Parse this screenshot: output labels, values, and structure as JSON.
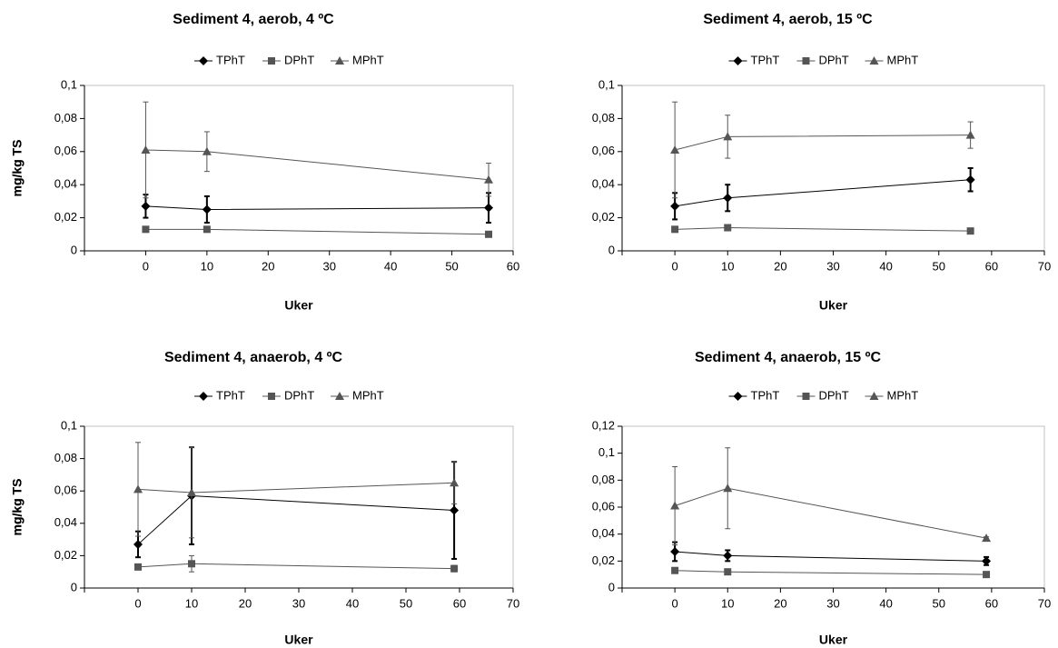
{
  "chart_data": [
    {
      "type": "line",
      "title": "Sediment 4, aerob, 4 ºC",
      "x_label": "Uker",
      "y_label": "mg/kg TS",
      "grid": false,
      "x": [
        0,
        10,
        56
      ],
      "xlim": [
        -10,
        60
      ],
      "xticks": [
        0,
        10,
        20,
        30,
        40,
        50,
        60
      ],
      "ylim": [
        0,
        0.1
      ],
      "yticks": [
        0,
        {
          "value": 0.02,
          "label": "0,02"
        },
        {
          "value": 0.04,
          "label": "0,04"
        },
        {
          "value": 0.06,
          "label": "0,06"
        },
        {
          "value": 0.08,
          "label": "0,08"
        },
        {
          "value": 0.1,
          "label": "0,1"
        }
      ],
      "series": [
        {
          "name": "TPhT",
          "color": "#000000",
          "marker": "diamond",
          "values": [
            0.027,
            0.025,
            0.026
          ],
          "errors": [
            0.007,
            0.008,
            0.009
          ]
        },
        {
          "name": "DPhT",
          "color": "#555555",
          "marker": "square",
          "values": [
            0.013,
            0.013,
            0.01
          ]
        },
        {
          "name": "MPhT",
          "color": "#555555",
          "marker": "triangle",
          "values": [
            0.061,
            0.06,
            0.043
          ],
          "errors": [
            0.029,
            0.012,
            0.01
          ]
        }
      ]
    },
    {
      "type": "line",
      "title": "Sediment 4, aerob, 15 ºC",
      "x_label": "Uker",
      "y_label": "mg/kg TS",
      "grid": false,
      "x": [
        0,
        10,
        56
      ],
      "xlim": [
        -10,
        70
      ],
      "xticks": [
        0,
        10,
        20,
        30,
        40,
        50,
        60,
        70
      ],
      "ylim": [
        0,
        0.1
      ],
      "yticks": [
        0,
        {
          "value": 0.02,
          "label": "0,02"
        },
        {
          "value": 0.04,
          "label": "0,04"
        },
        {
          "value": 0.06,
          "label": "0,06"
        },
        {
          "value": 0.08,
          "label": "0,08"
        },
        {
          "value": 0.1,
          "label": "0,1"
        }
      ],
      "series": [
        {
          "name": "TPhT",
          "color": "#000000",
          "marker": "diamond",
          "values": [
            0.027,
            0.032,
            0.043
          ],
          "errors": [
            0.008,
            0.008,
            0.007
          ]
        },
        {
          "name": "DPhT",
          "color": "#555555",
          "marker": "square",
          "values": [
            0.013,
            0.014,
            0.012
          ]
        },
        {
          "name": "MPhT",
          "color": "#555555",
          "marker": "triangle",
          "values": [
            0.061,
            0.069,
            0.07
          ],
          "errors": [
            0.029,
            0.013,
            0.008
          ]
        }
      ]
    },
    {
      "type": "line",
      "title": "Sediment 4, anaerob, 4 ºC",
      "x_label": "Uker",
      "y_label": "mg/kg TS",
      "grid": false,
      "x": [
        0,
        10,
        59
      ],
      "xlim": [
        -10,
        70
      ],
      "xticks": [
        0,
        10,
        20,
        30,
        40,
        50,
        60,
        70
      ],
      "ylim": [
        0,
        0.1
      ],
      "yticks": [
        0,
        {
          "value": 0.02,
          "label": "0,02"
        },
        {
          "value": 0.04,
          "label": "0,04"
        },
        {
          "value": 0.06,
          "label": "0,06"
        },
        {
          "value": 0.08,
          "label": "0,08"
        },
        {
          "value": 0.1,
          "label": "0,1"
        }
      ],
      "series": [
        {
          "name": "TPhT",
          "color": "#000000",
          "marker": "diamond",
          "values": [
            0.027,
            0.057,
            0.048
          ],
          "errors": [
            0.008,
            0.03,
            0.03
          ]
        },
        {
          "name": "DPhT",
          "color": "#555555",
          "marker": "square",
          "values": [
            0.013,
            0.015,
            0.012
          ],
          "errors": [
            0.001,
            0.005,
            0.002
          ]
        },
        {
          "name": "MPhT",
          "color": "#555555",
          "marker": "triangle",
          "values": [
            0.061,
            0.059,
            0.065
          ],
          "errors": [
            0.029,
            0.028,
            0.013
          ]
        }
      ]
    },
    {
      "type": "line",
      "title": "Sediment 4, anaerob, 15 ºC",
      "x_label": "Uker",
      "y_label": "mg/kg TS",
      "grid": false,
      "x": [
        0,
        10,
        59
      ],
      "xlim": [
        -10,
        70
      ],
      "xticks": [
        0,
        10,
        20,
        30,
        40,
        50,
        60,
        70
      ],
      "ylim": [
        0,
        0.12
      ],
      "yticks": [
        0,
        {
          "value": 0.02,
          "label": "0,02"
        },
        {
          "value": 0.04,
          "label": "0,04"
        },
        {
          "value": 0.06,
          "label": "0,06"
        },
        {
          "value": 0.08,
          "label": "0,08"
        },
        {
          "value": 0.1,
          "label": "0,1"
        },
        {
          "value": 0.12,
          "label": "0,12"
        }
      ],
      "series": [
        {
          "name": "TPhT",
          "color": "#000000",
          "marker": "diamond",
          "values": [
            0.027,
            0.024,
            0.02
          ],
          "errors": [
            0.007,
            0.004,
            0.003
          ]
        },
        {
          "name": "DPhT",
          "color": "#555555",
          "marker": "square",
          "values": [
            0.013,
            0.012,
            0.01
          ]
        },
        {
          "name": "MPhT",
          "color": "#555555",
          "marker": "triangle",
          "values": [
            0.061,
            0.074,
            0.037
          ],
          "errors": [
            0.029,
            0.03,
            0.001
          ]
        }
      ]
    }
  ]
}
